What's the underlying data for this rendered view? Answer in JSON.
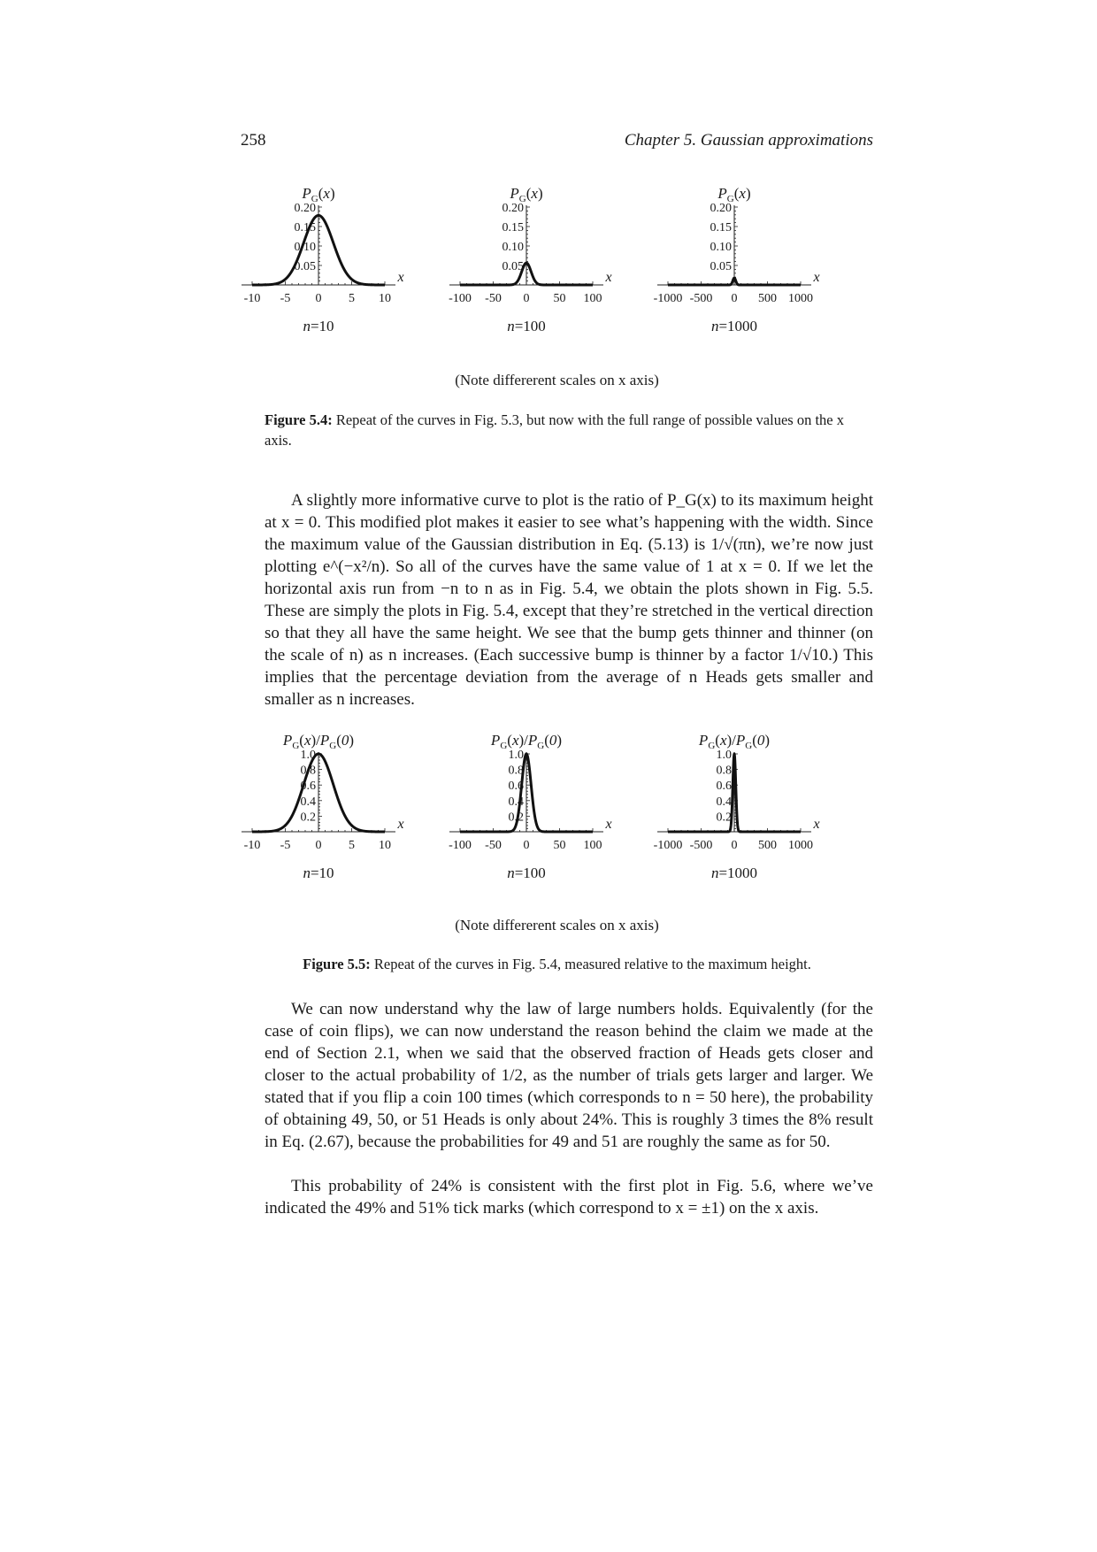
{
  "header": {
    "page_number": "258",
    "chapter": "Chapter 5.  Gaussian approximations"
  },
  "figure_5_4": {
    "note": "(Note differerent scales on x axis)",
    "caption_label": "Figure 5.4:",
    "caption_text": "Repeat of the curves in Fig. 5.3, but now with the full range of possible values on the x axis."
  },
  "figure_5_5": {
    "note": "(Note differerent scales on x axis)",
    "caption_label": "Figure 5.5:",
    "caption_text": "Repeat of the curves in Fig. 5.4, measured relative to the maximum height."
  },
  "paragraph_1": "A slightly more informative curve to plot is the ratio of P_G(x) to its maximum height at x = 0. This modified plot makes it easier to see what’s happening with the width. Since the maximum value of the Gaussian distribution in Eq. (5.13) is 1/√(πn), we’re now just plotting e^(−x²/n). So all of the curves have the same value of 1 at x = 0. If we let the horizontal axis run from −n to n as in Fig. 5.4, we obtain the plots shown in Fig. 5.5. These are simply the plots in Fig. 5.4, except that they’re stretched in the vertical direction so that they all have the same height. We see that the bump gets thinner and thinner (on the scale of n) as n increases. (Each successive bump is thinner by a factor 1/√10.) This implies that the percentage deviation from the average of n Heads gets smaller and smaller as n increases.",
  "paragraph_2": "We can now understand why the law of large numbers holds. Equivalently (for the case of coin flips), we can now understand the reason behind the claim we made at the end of Section 2.1, when we said that the observed fraction of Heads gets closer and closer to the actual probability of 1/2, as the number of trials gets larger and larger. We stated that if you flip a coin 100 times (which corresponds to n = 50 here), the probability of obtaining 49, 50, or 51 Heads is only about 24%. This is roughly 3 times the 8% result in Eq. (2.67), because the probabilities for 49 and 51 are roughly the same as for 50.",
  "paragraph_3": "This probability of 24% is consistent with the first plot in Fig. 5.6, where we’ve indicated the 49% and 51% tick marks (which correspond to x = ±1) on the x axis.",
  "chart_data": [
    {
      "type": "line",
      "figure": "5.4",
      "ylabel": "P_G(x)",
      "xlabel": "x",
      "n_label": "n=10",
      "function": "exp(-x^2/n)/sqrt(pi*n)",
      "n": 10,
      "xlim": [
        -10,
        10
      ],
      "ylim": [
        0,
        0.2
      ],
      "xticks": [
        "-10",
        "-5",
        "0",
        "5",
        "10"
      ],
      "yticks": [
        "0.05",
        "0.10",
        "0.15",
        "0.20"
      ],
      "peak": 0.1784
    },
    {
      "type": "line",
      "figure": "5.4",
      "ylabel": "P_G(x)",
      "xlabel": "x",
      "n_label": "n=100",
      "function": "exp(-x^2/n)/sqrt(pi*n)",
      "n": 100,
      "xlim": [
        -100,
        100
      ],
      "ylim": [
        0,
        0.2
      ],
      "xticks": [
        "-100",
        "-50",
        "0",
        "50",
        "100"
      ],
      "yticks": [
        "0.05",
        "0.10",
        "0.15",
        "0.20"
      ],
      "peak": 0.0564
    },
    {
      "type": "line",
      "figure": "5.4",
      "ylabel": "P_G(x)",
      "xlabel": "x",
      "n_label": "n=1000",
      "function": "exp(-x^2/n)/sqrt(pi*n)",
      "n": 1000,
      "xlim": [
        -1000,
        1000
      ],
      "ylim": [
        0,
        0.2
      ],
      "xticks": [
        "-1000",
        "-500",
        "0",
        "500",
        "1000"
      ],
      "yticks": [
        "0.05",
        "0.10",
        "0.15",
        "0.20"
      ],
      "peak": 0.0178
    },
    {
      "type": "line",
      "figure": "5.5",
      "ylabel": "P_G(x)/P_G(0)",
      "xlabel": "x",
      "n_label": "n=10",
      "function": "exp(-x^2/n)",
      "n": 10,
      "xlim": [
        -10,
        10
      ],
      "ylim": [
        0,
        1.0
      ],
      "xticks": [
        "-10",
        "-5",
        "0",
        "5",
        "10"
      ],
      "yticks": [
        "0.2",
        "0.4",
        "0.6",
        "0.8",
        "1.0"
      ],
      "peak": 1.0
    },
    {
      "type": "line",
      "figure": "5.5",
      "ylabel": "P_G(x)/P_G(0)",
      "xlabel": "x",
      "n_label": "n=100",
      "function": "exp(-x^2/n)",
      "n": 100,
      "xlim": [
        -100,
        100
      ],
      "ylim": [
        0,
        1.0
      ],
      "xticks": [
        "-100",
        "-50",
        "0",
        "50",
        "100"
      ],
      "yticks": [
        "0.2",
        "0.4",
        "0.6",
        "0.8",
        "1.0"
      ],
      "peak": 1.0
    },
    {
      "type": "line",
      "figure": "5.5",
      "ylabel": "P_G(x)/P_G(0)",
      "xlabel": "x",
      "n_label": "n=1000",
      "function": "exp(-x^2/n)",
      "n": 1000,
      "xlim": [
        -1000,
        1000
      ],
      "ylim": [
        0,
        1.0
      ],
      "xticks": [
        "-1000",
        "-500",
        "0",
        "500",
        "1000"
      ],
      "yticks": [
        "0.2",
        "0.4",
        "0.6",
        "0.8",
        "1.0"
      ],
      "peak": 1.0
    }
  ]
}
